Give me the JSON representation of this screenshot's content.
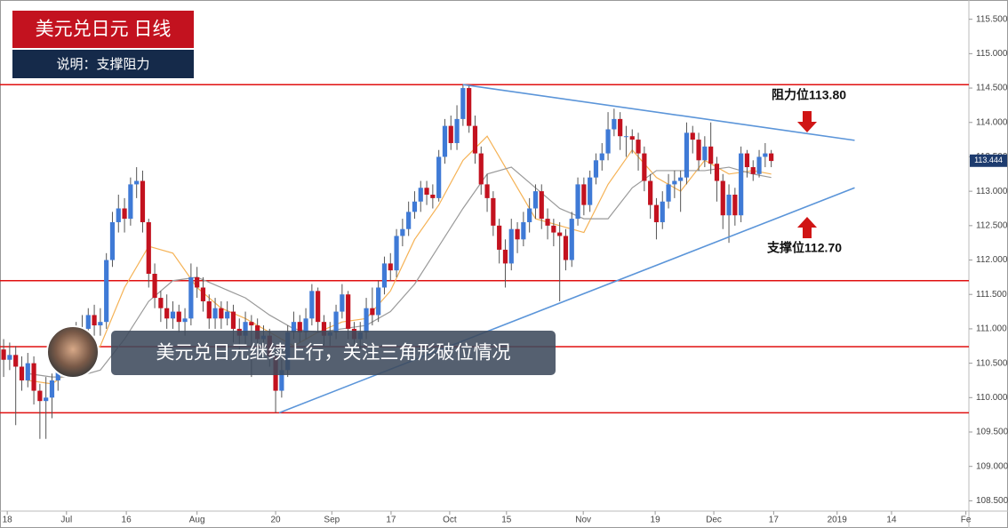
{
  "chart_data": {
    "type": "candlestick",
    "title": "美元兑日元 日线",
    "subtitle": "说明：支撑阻力",
    "banner": "美元兑日元继续上行，关注三角形破位情况",
    "annotations": [
      "阻力位113.80",
      "支撑位112.70"
    ],
    "last_price": 113.444,
    "up_color": "#3f7ad6",
    "down_color": "#c3121f",
    "ylim": [
      108.35,
      115.78
    ],
    "xlim": [
      -0.6,
      159.7
    ],
    "yticks": [
      {
        "value": 108.5,
        "label": "108.500"
      },
      {
        "value": 109,
        "label": "109.000"
      },
      {
        "value": 109.5,
        "label": "109.500"
      },
      {
        "value": 110,
        "label": "110.000"
      },
      {
        "value": 110.5,
        "label": "110.500"
      },
      {
        "value": 111,
        "label": "111.000"
      },
      {
        "value": 111.5,
        "label": "111.500"
      },
      {
        "value": 112,
        "label": "112.000"
      },
      {
        "value": 112.5,
        "label": "112.500"
      },
      {
        "value": 113,
        "label": "113.000"
      },
      {
        "value": 113.5,
        "label": "113.500"
      },
      {
        "value": 114,
        "label": "114.000"
      },
      {
        "value": 114.5,
        "label": "114.500"
      },
      {
        "value": 115,
        "label": "115.000"
      },
      {
        "value": 115.5,
        "label": "115.500"
      }
    ],
    "xticks": [
      {
        "value": 0.6,
        "label": "18"
      },
      {
        "value": 10.4,
        "label": "Jul"
      },
      {
        "value": 20.3,
        "label": "16"
      },
      {
        "value": 32,
        "label": "Aug"
      },
      {
        "value": 45,
        "label": "20"
      },
      {
        "value": 54.3,
        "label": "Sep"
      },
      {
        "value": 64.1,
        "label": "17"
      },
      {
        "value": 73.8,
        "label": "Oct"
      },
      {
        "value": 83.2,
        "label": "15"
      },
      {
        "value": 95.9,
        "label": "Nov"
      },
      {
        "value": 107.8,
        "label": "19"
      },
      {
        "value": 117.5,
        "label": "Dec"
      },
      {
        "value": 127.4,
        "label": "17"
      },
      {
        "value": 137.9,
        "label": "2019"
      },
      {
        "value": 146.9,
        "label": "14"
      },
      {
        "value": 159.2,
        "label": "Fe"
      }
    ],
    "x": [
      0,
      1,
      2,
      3,
      4,
      5,
      6,
      7,
      8,
      9,
      10,
      11,
      12,
      13,
      14,
      15,
      16,
      17,
      18,
      19,
      20,
      21,
      22,
      23,
      24,
      25,
      26,
      27,
      28,
      29,
      30,
      31,
      32,
      33,
      34,
      35,
      36,
      37,
      38,
      39,
      40,
      41,
      42,
      43,
      44,
      45,
      46,
      47,
      48,
      49,
      50,
      51,
      52,
      53,
      54,
      55,
      56,
      57,
      58,
      59,
      60,
      61,
      62,
      63,
      64,
      65,
      66,
      67,
      68,
      69,
      70,
      71,
      72,
      73,
      74,
      75,
      76,
      77,
      78,
      79,
      80,
      81,
      82,
      83,
      84,
      85,
      86,
      87,
      88,
      89,
      90,
      91,
      92,
      93,
      94,
      95,
      96,
      97,
      98,
      99,
      100,
      101,
      102,
      103,
      104,
      105,
      106,
      107,
      108,
      109,
      110,
      111,
      112,
      113,
      114,
      115,
      116,
      117,
      118,
      119,
      120,
      121,
      122,
      123,
      124,
      125,
      126,
      127
    ],
    "open": [
      110.7,
      110.55,
      110.62,
      110.45,
      110.25,
      110.5,
      110.1,
      109.95,
      110.0,
      110.25,
      110.4,
      110.5,
      110.8,
      110.9,
      111.0,
      111.2,
      111.05,
      111.1,
      112.0,
      112.55,
      112.75,
      112.6,
      113.1,
      113.15,
      112.55,
      111.8,
      111.45,
      111.3,
      111.15,
      111.25,
      111.1,
      111.15,
      111.75,
      111.6,
      111.4,
      111.15,
      111.3,
      111.15,
      111.25,
      111.0,
      110.9,
      111.1,
      111.05,
      110.85,
      110.9,
      110.6,
      110.1,
      110.4,
      110.95,
      111.1,
      110.95,
      111.15,
      111.55,
      111.1,
      110.9,
      110.95,
      111.25,
      111.5,
      111.0,
      110.85,
      110.95,
      111.3,
      111.2,
      111.6,
      111.95,
      111.85,
      112.35,
      112.45,
      112.7,
      112.85,
      113.05,
      112.95,
      112.9,
      113.5,
      113.95,
      113.7,
      114.05,
      114.5,
      113.95,
      113.55,
      113.1,
      112.9,
      112.5,
      112.15,
      111.95,
      112.45,
      112.3,
      112.55,
      112.75,
      113.0,
      112.6,
      112.5,
      112.4,
      112.35,
      112.0,
      112.6,
      113.1,
      112.8,
      113.2,
      113.45,
      113.55,
      113.9,
      114.05,
      113.8,
      113.8,
      113.75,
      113.55,
      113.15,
      112.8,
      112.55,
      112.85,
      113.1,
      113.15,
      113.2,
      113.85,
      113.75,
      113.45,
      113.65,
      113.4,
      113.15,
      112.65,
      112.95,
      112.65,
      113.55,
      113.35,
      113.25,
      113.5,
      113.55
    ],
    "high": [
      110.85,
      110.8,
      110.75,
      110.6,
      110.65,
      110.6,
      110.2,
      110.3,
      110.35,
      110.5,
      110.7,
      110.95,
      111.1,
      111.2,
      111.3,
      111.35,
      111.3,
      112.1,
      112.7,
      112.95,
      112.9,
      113.2,
      113.35,
      113.3,
      112.6,
      111.95,
      111.55,
      111.5,
      111.4,
      111.35,
      111.3,
      111.95,
      111.9,
      111.75,
      111.5,
      111.45,
      111.4,
      111.4,
      111.35,
      111.15,
      111.25,
      111.2,
      111.15,
      111.05,
      111.0,
      110.7,
      110.55,
      111.05,
      111.25,
      111.2,
      111.3,
      111.65,
      111.6,
      111.2,
      111.1,
      111.35,
      111.65,
      111.55,
      111.1,
      111.1,
      111.45,
      111.6,
      111.7,
      112.05,
      112.1,
      112.45,
      112.6,
      112.85,
      113.0,
      113.15,
      113.15,
      113.1,
      113.6,
      114.05,
      114.1,
      114.25,
      114.55,
      114.55,
      114.1,
      113.65,
      113.25,
      113.0,
      112.6,
      112.3,
      112.6,
      112.55,
      112.7,
      112.9,
      113.1,
      113.1,
      112.75,
      112.6,
      112.55,
      112.45,
      112.7,
      113.2,
      113.2,
      113.3,
      113.55,
      113.7,
      114.15,
      114.2,
      114.15,
      113.95,
      113.9,
      113.85,
      113.65,
      113.25,
      112.9,
      113.0,
      113.25,
      113.3,
      113.3,
      114.0,
      113.95,
      113.85,
      113.8,
      114.0,
      113.5,
      113.25,
      113.1,
      113.05,
      113.65,
      113.6,
      113.45,
      113.6,
      113.7,
      113.6
    ],
    "low": [
      110.3,
      110.4,
      109.6,
      110.1,
      110.15,
      109.9,
      109.4,
      109.4,
      109.7,
      110.1,
      110.3,
      110.4,
      110.7,
      110.8,
      110.9,
      110.9,
      110.9,
      111.0,
      111.9,
      112.4,
      112.4,
      112.5,
      112.9,
      112.4,
      111.6,
      111.3,
      111.1,
      111.0,
      111.0,
      110.95,
      110.9,
      111.05,
      111.45,
      111.25,
      111.0,
      111.0,
      111.0,
      111.05,
      110.8,
      110.6,
      110.75,
      110.3,
      110.6,
      110.7,
      110.45,
      109.78,
      110.0,
      110.3,
      110.85,
      110.8,
      110.85,
      111.05,
      110.95,
      110.75,
      110.75,
      110.85,
      111.15,
      110.85,
      110.6,
      110.7,
      110.85,
      111.05,
      111.1,
      111.5,
      111.7,
      111.75,
      112.2,
      112.35,
      112.6,
      112.7,
      112.8,
      112.75,
      112.85,
      113.4,
      113.6,
      113.6,
      113.95,
      113.85,
      113.4,
      112.95,
      112.7,
      112.35,
      111.95,
      111.6,
      111.85,
      112.1,
      112.2,
      112.4,
      112.6,
      112.45,
      112.3,
      112.2,
      111.4,
      111.85,
      111.9,
      112.5,
      112.65,
      112.7,
      113.1,
      113.3,
      113.45,
      113.8,
      113.6,
      113.5,
      113.55,
      113.3,
      113.0,
      112.6,
      112.3,
      112.45,
      112.75,
      112.9,
      112.7,
      113.1,
      113.55,
      113.3,
      113.35,
      113.25,
      112.85,
      112.45,
      112.25,
      112.5,
      112.55,
      113.2,
      113.15,
      113.2,
      113.35,
      113.35
    ],
    "close": [
      110.55,
      110.62,
      110.45,
      110.25,
      110.5,
      110.1,
      109.95,
      110.0,
      110.25,
      110.4,
      110.5,
      110.8,
      110.9,
      111.0,
      111.2,
      111.05,
      111.1,
      112.0,
      112.55,
      112.75,
      112.6,
      113.1,
      113.15,
      112.55,
      111.8,
      111.45,
      111.3,
      111.15,
      111.25,
      111.1,
      111.15,
      111.75,
      111.6,
      111.4,
      111.15,
      111.3,
      111.15,
      111.25,
      111.0,
      110.9,
      111.1,
      111.05,
      110.85,
      110.9,
      110.6,
      110.1,
      110.4,
      110.95,
      111.1,
      110.95,
      111.15,
      111.55,
      111.1,
      110.9,
      110.95,
      111.25,
      111.5,
      111.0,
      110.85,
      110.95,
      111.3,
      111.2,
      111.6,
      111.95,
      111.85,
      112.35,
      112.45,
      112.7,
      112.85,
      113.05,
      112.95,
      112.9,
      113.5,
      113.95,
      113.7,
      114.05,
      114.5,
      113.95,
      113.55,
      113.1,
      112.9,
      112.5,
      112.15,
      111.95,
      112.45,
      112.3,
      112.55,
      112.75,
      113.0,
      112.6,
      112.5,
      112.4,
      112.35,
      112.0,
      112.6,
      113.1,
      112.8,
      113.2,
      113.45,
      113.55,
      113.9,
      114.05,
      113.8,
      113.8,
      113.75,
      113.55,
      113.15,
      112.8,
      112.55,
      112.85,
      113.1,
      113.15,
      113.2,
      113.85,
      113.75,
      113.45,
      113.65,
      113.4,
      113.15,
      112.65,
      112.95,
      112.65,
      113.55,
      113.35,
      113.25,
      113.5,
      113.55,
      113.44
    ],
    "ma": [
      {
        "color": "#f5b255",
        "x": [
          4,
          8,
          12,
          16,
          20,
          24,
          28,
          32,
          36,
          40,
          44,
          48,
          52,
          56,
          60,
          64,
          68,
          72,
          76,
          80,
          84,
          88,
          92,
          96,
          100,
          104,
          108,
          112,
          116,
          120,
          124,
          127
        ],
        "values": [
          110.25,
          110.2,
          110.45,
          110.75,
          111.6,
          112.2,
          112.1,
          111.6,
          111.3,
          111.15,
          110.95,
          110.75,
          110.95,
          111.1,
          111.15,
          111.55,
          112.3,
          112.8,
          113.45,
          113.8,
          113.2,
          112.6,
          112.5,
          112.4,
          113.1,
          113.6,
          113.2,
          113.0,
          113.45,
          113.25,
          113.3,
          113.25
        ]
      },
      {
        "color": "#9a9a9a",
        "x": [
          4,
          8,
          12,
          16,
          20,
          24,
          28,
          32,
          36,
          40,
          44,
          48,
          52,
          56,
          60,
          64,
          68,
          72,
          76,
          80,
          84,
          88,
          92,
          96,
          100,
          104,
          108,
          112,
          116,
          120,
          124,
          127
        ],
        "values": [
          110.35,
          110.3,
          110.3,
          110.4,
          110.85,
          111.4,
          111.7,
          111.75,
          111.6,
          111.45,
          111.2,
          111.0,
          110.95,
          111.0,
          111.05,
          111.25,
          111.65,
          112.2,
          112.75,
          113.25,
          113.35,
          113.05,
          112.75,
          112.6,
          112.6,
          113.05,
          113.3,
          113.3,
          113.3,
          113.35,
          113.25,
          113.2
        ]
      }
    ],
    "hlines": [
      114.55,
      111.7,
      110.74,
      109.78
    ],
    "hline_color": "#e01010",
    "trendlines": [
      {
        "x": [
          76,
          140.8
        ],
        "values": [
          114.55,
          113.74
        ]
      },
      {
        "x": [
          45.6,
          140.8
        ],
        "values": [
          109.78,
          113.05
        ]
      }
    ],
    "trend_color": "#5b95d9"
  }
}
